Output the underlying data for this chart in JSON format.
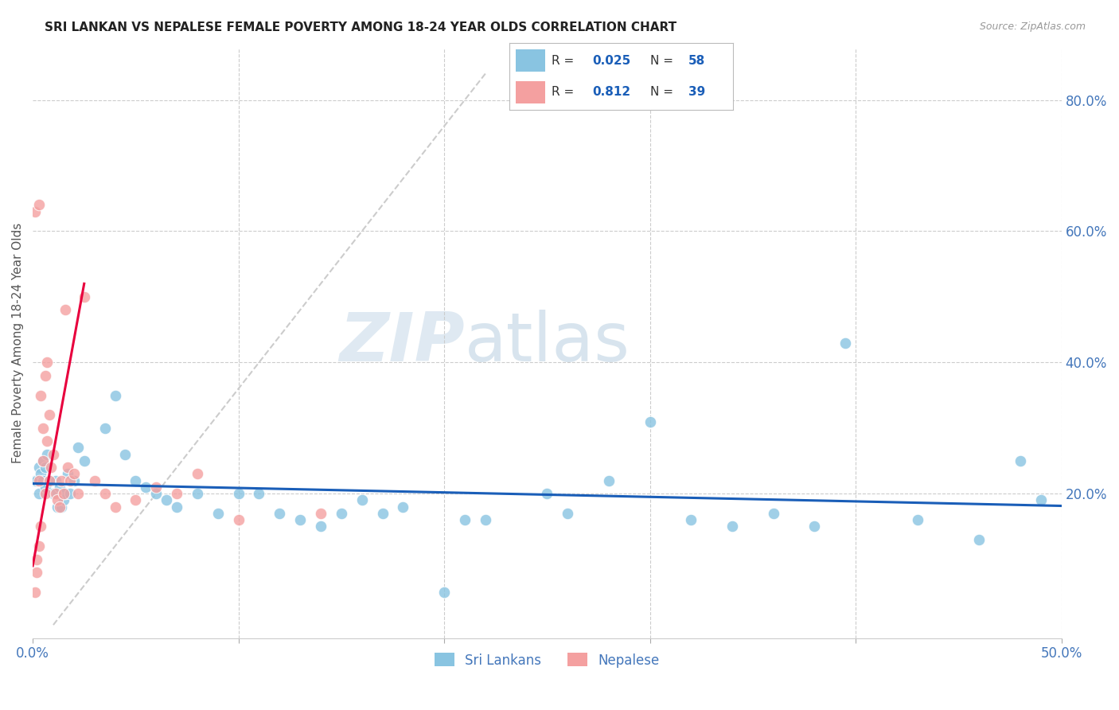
{
  "title": "SRI LANKAN VS NEPALESE FEMALE POVERTY AMONG 18-24 YEAR OLDS CORRELATION CHART",
  "source": "Source: ZipAtlas.com",
  "ylabel": "Female Poverty Among 18-24 Year Olds",
  "xlim": [
    0.0,
    0.5
  ],
  "ylim": [
    -0.02,
    0.88
  ],
  "ytick_right_labels": [
    "80.0%",
    "60.0%",
    "40.0%",
    "20.0%"
  ],
  "ytick_right_vals": [
    0.8,
    0.6,
    0.4,
    0.2
  ],
  "sri_lankan_color": "#89c4e1",
  "nepalese_color": "#f4a0a0",
  "regression_sri_color": "#1a5eb8",
  "regression_nep_color": "#e8003d",
  "diagonal_color": "#cccccc",
  "axis_label_color": "#555555",
  "tick_color": "#4477bb",
  "watermark_color": "#dce8f0",
  "legend_r_color": "#1a5eb8",
  "legend_n_color": "#1a5eb8",
  "sri_R": "0.025",
  "sri_N": "58",
  "nep_R": "0.812",
  "nep_N": "39",
  "sri_x": [
    0.001,
    0.002,
    0.003,
    0.003,
    0.004,
    0.005,
    0.005,
    0.006,
    0.006,
    0.007,
    0.008,
    0.01,
    0.011,
    0.012,
    0.013,
    0.014,
    0.015,
    0.016,
    0.017,
    0.018,
    0.02,
    0.022,
    0.025,
    0.035,
    0.04,
    0.045,
    0.05,
    0.055,
    0.06,
    0.065,
    0.07,
    0.08,
    0.09,
    0.1,
    0.11,
    0.12,
    0.13,
    0.14,
    0.15,
    0.16,
    0.17,
    0.18,
    0.2,
    0.21,
    0.22,
    0.25,
    0.26,
    0.28,
    0.3,
    0.32,
    0.34,
    0.36,
    0.38,
    0.395,
    0.43,
    0.46,
    0.48,
    0.49
  ],
  "sri_y": [
    0.22,
    0.22,
    0.24,
    0.2,
    0.23,
    0.25,
    0.22,
    0.24,
    0.21,
    0.26,
    0.22,
    0.2,
    0.22,
    0.18,
    0.21,
    0.18,
    0.19,
    0.2,
    0.23,
    0.2,
    0.22,
    0.27,
    0.25,
    0.3,
    0.35,
    0.26,
    0.22,
    0.21,
    0.2,
    0.19,
    0.18,
    0.2,
    0.17,
    0.2,
    0.2,
    0.17,
    0.16,
    0.15,
    0.17,
    0.19,
    0.17,
    0.18,
    0.05,
    0.16,
    0.16,
    0.2,
    0.17,
    0.22,
    0.31,
    0.16,
    0.15,
    0.17,
    0.15,
    0.43,
    0.16,
    0.13,
    0.25,
    0.19
  ],
  "nep_x": [
    0.001,
    0.002,
    0.002,
    0.003,
    0.003,
    0.004,
    0.004,
    0.005,
    0.005,
    0.006,
    0.006,
    0.007,
    0.007,
    0.008,
    0.008,
    0.009,
    0.01,
    0.011,
    0.012,
    0.013,
    0.014,
    0.015,
    0.016,
    0.017,
    0.018,
    0.02,
    0.022,
    0.025,
    0.03,
    0.035,
    0.04,
    0.05,
    0.06,
    0.07,
    0.08,
    0.1,
    0.14,
    0.001,
    0.003
  ],
  "nep_y": [
    0.05,
    0.08,
    0.1,
    0.12,
    0.22,
    0.15,
    0.35,
    0.25,
    0.3,
    0.2,
    0.38,
    0.4,
    0.28,
    0.22,
    0.32,
    0.24,
    0.26,
    0.2,
    0.19,
    0.18,
    0.22,
    0.2,
    0.48,
    0.24,
    0.22,
    0.23,
    0.2,
    0.5,
    0.22,
    0.2,
    0.18,
    0.19,
    0.21,
    0.2,
    0.23,
    0.16,
    0.17,
    0.63,
    0.64
  ]
}
